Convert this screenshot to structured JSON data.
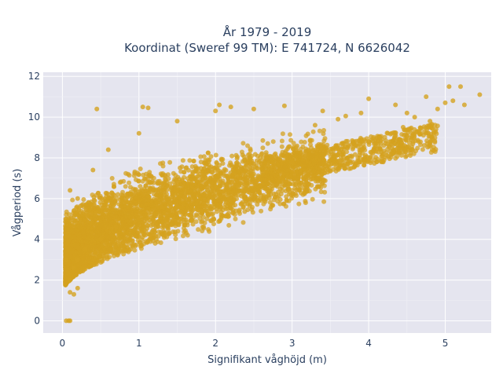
{
  "chart_data": {
    "type": "scatter",
    "title_line1": "År 1979 - 2019",
    "title_line2": "Koordinat (Sweref 99 TM): E 741724, N 6626042",
    "xlabel": "Signifikant våghöjd (m)",
    "ylabel": "Vågperiod (s)",
    "xlim": [
      -0.25,
      5.6
    ],
    "ylim": [
      -0.6,
      12.2
    ],
    "x_ticks": [
      0,
      1,
      2,
      3,
      4,
      5
    ],
    "y_ticks": [
      0,
      2,
      4,
      6,
      8,
      10,
      12
    ],
    "x_tick_labels": [
      "0",
      "1",
      "2",
      "3",
      "4",
      "5"
    ],
    "y_tick_labels": [
      "0",
      "2",
      "4",
      "6",
      "8",
      "10",
      "12"
    ],
    "grid": true,
    "marker_color": "#d4a21f",
    "plot_background": "#e5e5ef",
    "points_sample": [
      [
        0.05,
        0.0
      ],
      [
        0.08,
        0.0
      ],
      [
        0.1,
        0.0
      ],
      [
        0.1,
        2.0
      ],
      [
        0.15,
        2.6
      ],
      [
        0.2,
        3.0
      ],
      [
        0.3,
        3.5
      ],
      [
        0.5,
        4.0
      ],
      [
        0.7,
        4.6
      ],
      [
        1.0,
        5.0
      ],
      [
        1.3,
        5.6
      ],
      [
        1.6,
        6.1
      ],
      [
        2.0,
        6.6
      ],
      [
        2.5,
        7.2
      ],
      [
        3.0,
        7.8
      ],
      [
        3.5,
        8.3
      ],
      [
        4.0,
        8.8
      ],
      [
        0.2,
        6.0
      ],
      [
        0.4,
        7.4
      ],
      [
        0.6,
        8.4
      ],
      [
        1.0,
        9.2
      ],
      [
        1.5,
        9.8
      ],
      [
        2.0,
        10.3
      ],
      [
        2.2,
        10.5
      ],
      [
        0.45,
        10.4
      ],
      [
        1.05,
        10.5
      ],
      [
        1.12,
        10.45
      ],
      [
        2.05,
        10.6
      ],
      [
        2.5,
        10.4
      ],
      [
        2.9,
        10.55
      ],
      [
        0.1,
        6.4
      ],
      [
        0.05,
        5.0
      ],
      [
        0.05,
        3.0
      ],
      [
        0.1,
        1.4
      ],
      [
        0.15,
        1.3
      ],
      [
        0.2,
        1.6
      ],
      [
        3.3,
        9.6
      ],
      [
        3.6,
        9.9
      ],
      [
        3.9,
        10.2
      ],
      [
        4.1,
        8.7
      ],
      [
        4.3,
        9.2
      ],
      [
        4.5,
        10.2
      ],
      [
        4.6,
        10.0
      ],
      [
        4.8,
        9.8
      ],
      [
        4.9,
        10.4
      ],
      [
        5.0,
        10.7
      ],
      [
        5.05,
        11.5
      ],
      [
        5.1,
        10.8
      ],
      [
        5.2,
        11.5
      ],
      [
        5.25,
        10.6
      ],
      [
        5.45,
        11.1
      ],
      [
        4.75,
        11.0
      ],
      [
        4.35,
        10.6
      ],
      [
        4.0,
        10.9
      ],
      [
        3.4,
        10.3
      ],
      [
        3.7,
        10.05
      ],
      [
        4.15,
        9.0
      ],
      [
        4.45,
        9.5
      ],
      [
        4.65,
        9.3
      ],
      [
        4.85,
        9.2
      ]
    ]
  }
}
